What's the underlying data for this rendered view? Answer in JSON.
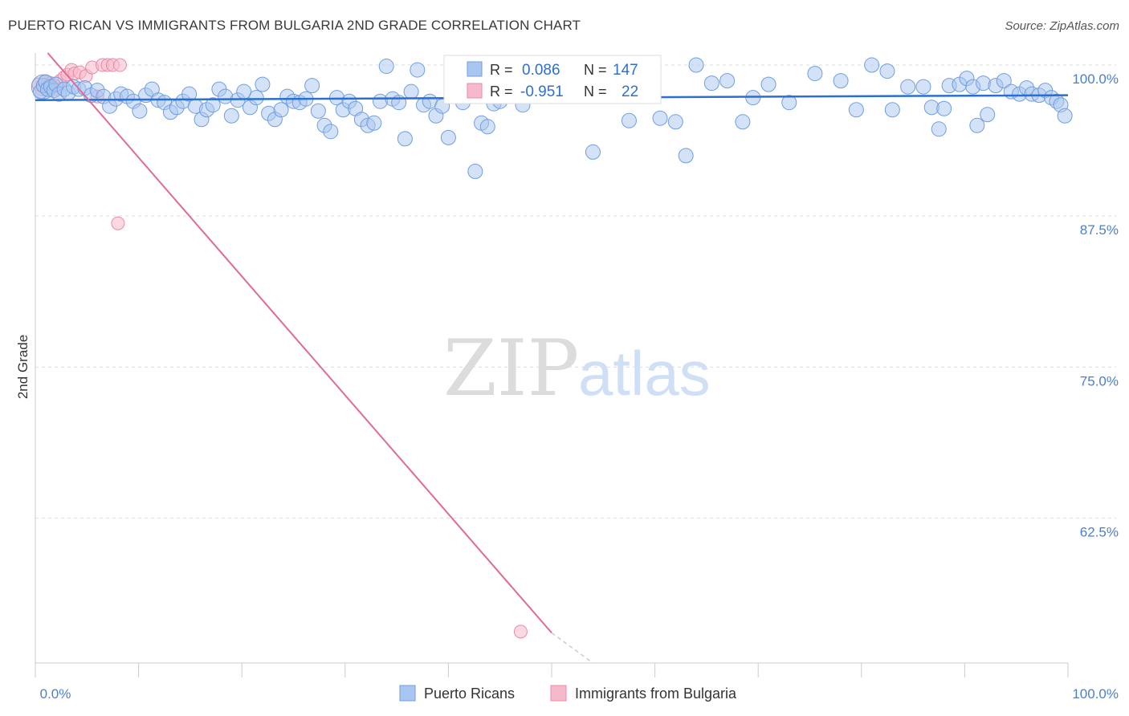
{
  "title": "PUERTO RICAN VS IMMIGRANTS FROM BULGARIA 2ND GRADE CORRELATION CHART",
  "source": "Source: ZipAtlas.com",
  "watermark": {
    "zip": "ZIP",
    "atlas": "atlas"
  },
  "colors": {
    "blue_fill": "#a9c6f0",
    "blue_stroke": "#6f9ee0",
    "blue_line": "#2b6fd1",
    "pink_fill": "#f5b9cb",
    "pink_stroke": "#e98aa8",
    "pink_line": "#e06b95",
    "tick_text": "#4a7fd0",
    "grid": "#dddddd"
  },
  "legend_box": {
    "rows": [
      {
        "series": "blue",
        "r_label": "R = ",
        "r_value": "0.086",
        "n_label": "N = ",
        "n_value": "147"
      },
      {
        "series": "pink",
        "r_label": "R = ",
        "r_value": "-0.951",
        "n_label": "N = ",
        "n_value": "22"
      }
    ]
  },
  "bottom_legend": [
    {
      "series": "blue",
      "label": "Puerto Ricans"
    },
    {
      "series": "pink",
      "label": "Immigrants from Bulgaria"
    }
  ],
  "chart_data": {
    "type": "scatter",
    "title": "PUERTO RICAN VS IMMIGRANTS FROM BULGARIA 2ND GRADE CORRELATION CHART",
    "xlabel": "",
    "ylabel": "2nd Grade",
    "xlim": [
      0,
      100
    ],
    "ylim": [
      50.5,
      101
    ],
    "x_tick_labels": [
      "0.0%",
      "100.0%"
    ],
    "y_ticks": [
      100,
      87.5,
      75,
      62.5
    ],
    "y_tick_labels": [
      "100.0%",
      "87.5%",
      "75.0%",
      "62.5%"
    ],
    "grid": true,
    "series": [
      {
        "name": "Puerto Ricans",
        "color": "blue",
        "trend": {
          "x": [
            0,
            100
          ],
          "y": [
            97.1,
            97.5
          ]
        },
        "points": [
          [
            0.5,
            97.8
          ],
          [
            0.8,
            98.3
          ],
          [
            1.0,
            98.6
          ],
          [
            1.2,
            98.0
          ],
          [
            1.5,
            98.2
          ],
          [
            1.8,
            97.9
          ],
          [
            2.0,
            98.4
          ],
          [
            2.3,
            97.6
          ],
          [
            2.8,
            98.0
          ],
          [
            3.2,
            97.7
          ],
          [
            3.7,
            98.2
          ],
          [
            4.2,
            98.0
          ],
          [
            4.8,
            98.1
          ],
          [
            5.4,
            97.5
          ],
          [
            6.0,
            97.9
          ],
          [
            6.6,
            97.4
          ],
          [
            7.2,
            96.6
          ],
          [
            7.8,
            97.2
          ],
          [
            8.3,
            97.6
          ],
          [
            8.9,
            97.4
          ],
          [
            9.5,
            97.0
          ],
          [
            10.1,
            96.2
          ],
          [
            10.7,
            97.5
          ],
          [
            11.3,
            98.0
          ],
          [
            11.9,
            97.1
          ],
          [
            12.5,
            96.9
          ],
          [
            13.1,
            96.1
          ],
          [
            13.7,
            96.5
          ],
          [
            14.3,
            97.0
          ],
          [
            14.9,
            97.6
          ],
          [
            15.5,
            96.6
          ],
          [
            16.1,
            95.5
          ],
          [
            16.6,
            96.3
          ],
          [
            17.2,
            96.7
          ],
          [
            17.8,
            98.0
          ],
          [
            18.4,
            97.4
          ],
          [
            19.0,
            95.8
          ],
          [
            19.6,
            97.1
          ],
          [
            20.2,
            97.8
          ],
          [
            20.8,
            96.5
          ],
          [
            21.4,
            97.3
          ],
          [
            22.0,
            98.4
          ],
          [
            22.6,
            96.0
          ],
          [
            23.2,
            95.5
          ],
          [
            23.8,
            96.3
          ],
          [
            24.4,
            97.4
          ],
          [
            25.0,
            97.0
          ],
          [
            25.6,
            96.9
          ],
          [
            26.2,
            97.2
          ],
          [
            26.8,
            98.3
          ],
          [
            27.4,
            96.2
          ],
          [
            28.0,
            95.0
          ],
          [
            28.6,
            94.5
          ],
          [
            29.2,
            97.3
          ],
          [
            29.8,
            96.3
          ],
          [
            30.4,
            97.0
          ],
          [
            31.0,
            96.4
          ],
          [
            31.6,
            95.5
          ],
          [
            32.2,
            95.0
          ],
          [
            32.8,
            95.2
          ],
          [
            33.4,
            97.0
          ],
          [
            34.0,
            99.9
          ],
          [
            34.6,
            97.2
          ],
          [
            35.2,
            96.9
          ],
          [
            35.8,
            93.9
          ],
          [
            36.4,
            97.8
          ],
          [
            37.0,
            99.6
          ],
          [
            37.6,
            96.7
          ],
          [
            38.2,
            97.0
          ],
          [
            38.8,
            95.8
          ],
          [
            39.4,
            96.6
          ],
          [
            40.0,
            94.0
          ],
          [
            40.8,
            100.0
          ],
          [
            41.4,
            96.9
          ],
          [
            42.0,
            98.0
          ],
          [
            42.6,
            91.2
          ],
          [
            43.2,
            95.2
          ],
          [
            43.8,
            94.9
          ],
          [
            44.4,
            96.8
          ],
          [
            45.0,
            97.0
          ],
          [
            45.6,
            100.0
          ],
          [
            46.0,
            99.8
          ],
          [
            46.3,
            97.6
          ],
          [
            46.8,
            99.9
          ],
          [
            47.2,
            96.7
          ],
          [
            48.0,
            100.0
          ],
          [
            50.0,
            97.4
          ],
          [
            52.0,
            99.9
          ],
          [
            54.0,
            92.8
          ],
          [
            56.0,
            100.0
          ],
          [
            57.5,
            95.4
          ],
          [
            59.0,
            100.0
          ],
          [
            60.5,
            95.6
          ],
          [
            62.0,
            95.3
          ],
          [
            63.0,
            92.5
          ],
          [
            64.0,
            100.0
          ],
          [
            65.5,
            98.5
          ],
          [
            67.0,
            98.7
          ],
          [
            68.5,
            95.3
          ],
          [
            69.5,
            97.3
          ],
          [
            71.0,
            98.4
          ],
          [
            73.0,
            96.9
          ],
          [
            75.5,
            99.3
          ],
          [
            78.0,
            98.7
          ],
          [
            79.5,
            96.3
          ],
          [
            81.0,
            100.0
          ],
          [
            82.5,
            99.5
          ],
          [
            83.0,
            96.3
          ],
          [
            84.5,
            98.2
          ],
          [
            86.0,
            98.2
          ],
          [
            86.8,
            96.5
          ],
          [
            87.5,
            94.7
          ],
          [
            88.0,
            96.4
          ],
          [
            88.5,
            98.3
          ],
          [
            89.5,
            98.4
          ],
          [
            90.2,
            98.9
          ],
          [
            90.8,
            98.2
          ],
          [
            91.2,
            95.0
          ],
          [
            91.8,
            98.5
          ],
          [
            92.2,
            95.9
          ],
          [
            93.0,
            98.3
          ],
          [
            93.8,
            98.7
          ],
          [
            94.5,
            97.8
          ],
          [
            95.3,
            97.6
          ],
          [
            96.0,
            98.1
          ],
          [
            96.5,
            97.6
          ],
          [
            97.2,
            97.5
          ],
          [
            97.8,
            97.9
          ],
          [
            98.4,
            97.3
          ],
          [
            98.9,
            97.0
          ],
          [
            99.3,
            96.7
          ],
          [
            99.7,
            95.8
          ]
        ]
      },
      {
        "name": "Immigrants from Bulgaria",
        "color": "pink",
        "trend": {
          "x": [
            1.2,
            50.0
          ],
          "y": [
            101.0,
            53.0
          ]
        },
        "trend_dashed_extension": {
          "x": [
            50.0,
            54.0
          ],
          "y": [
            53.0,
            50.5
          ]
        },
        "points": [
          [
            0.3,
            98.4
          ],
          [
            0.6,
            98.0
          ],
          [
            0.9,
            98.6
          ],
          [
            1.2,
            98.2
          ],
          [
            1.5,
            98.5
          ],
          [
            1.8,
            98.3
          ],
          [
            2.1,
            98.0
          ],
          [
            2.4,
            98.7
          ],
          [
            2.8,
            99.0
          ],
          [
            3.1,
            99.2
          ],
          [
            3.5,
            99.6
          ],
          [
            3.8,
            99.3
          ],
          [
            4.3,
            99.4
          ],
          [
            4.9,
            99.1
          ],
          [
            5.5,
            99.8
          ],
          [
            6.0,
            97.4
          ],
          [
            6.5,
            100.0
          ],
          [
            7.0,
            100.0
          ],
          [
            7.5,
            100.0
          ],
          [
            8.2,
            100.0
          ],
          [
            8.0,
            86.9
          ],
          [
            47.0,
            53.1
          ]
        ]
      }
    ]
  }
}
